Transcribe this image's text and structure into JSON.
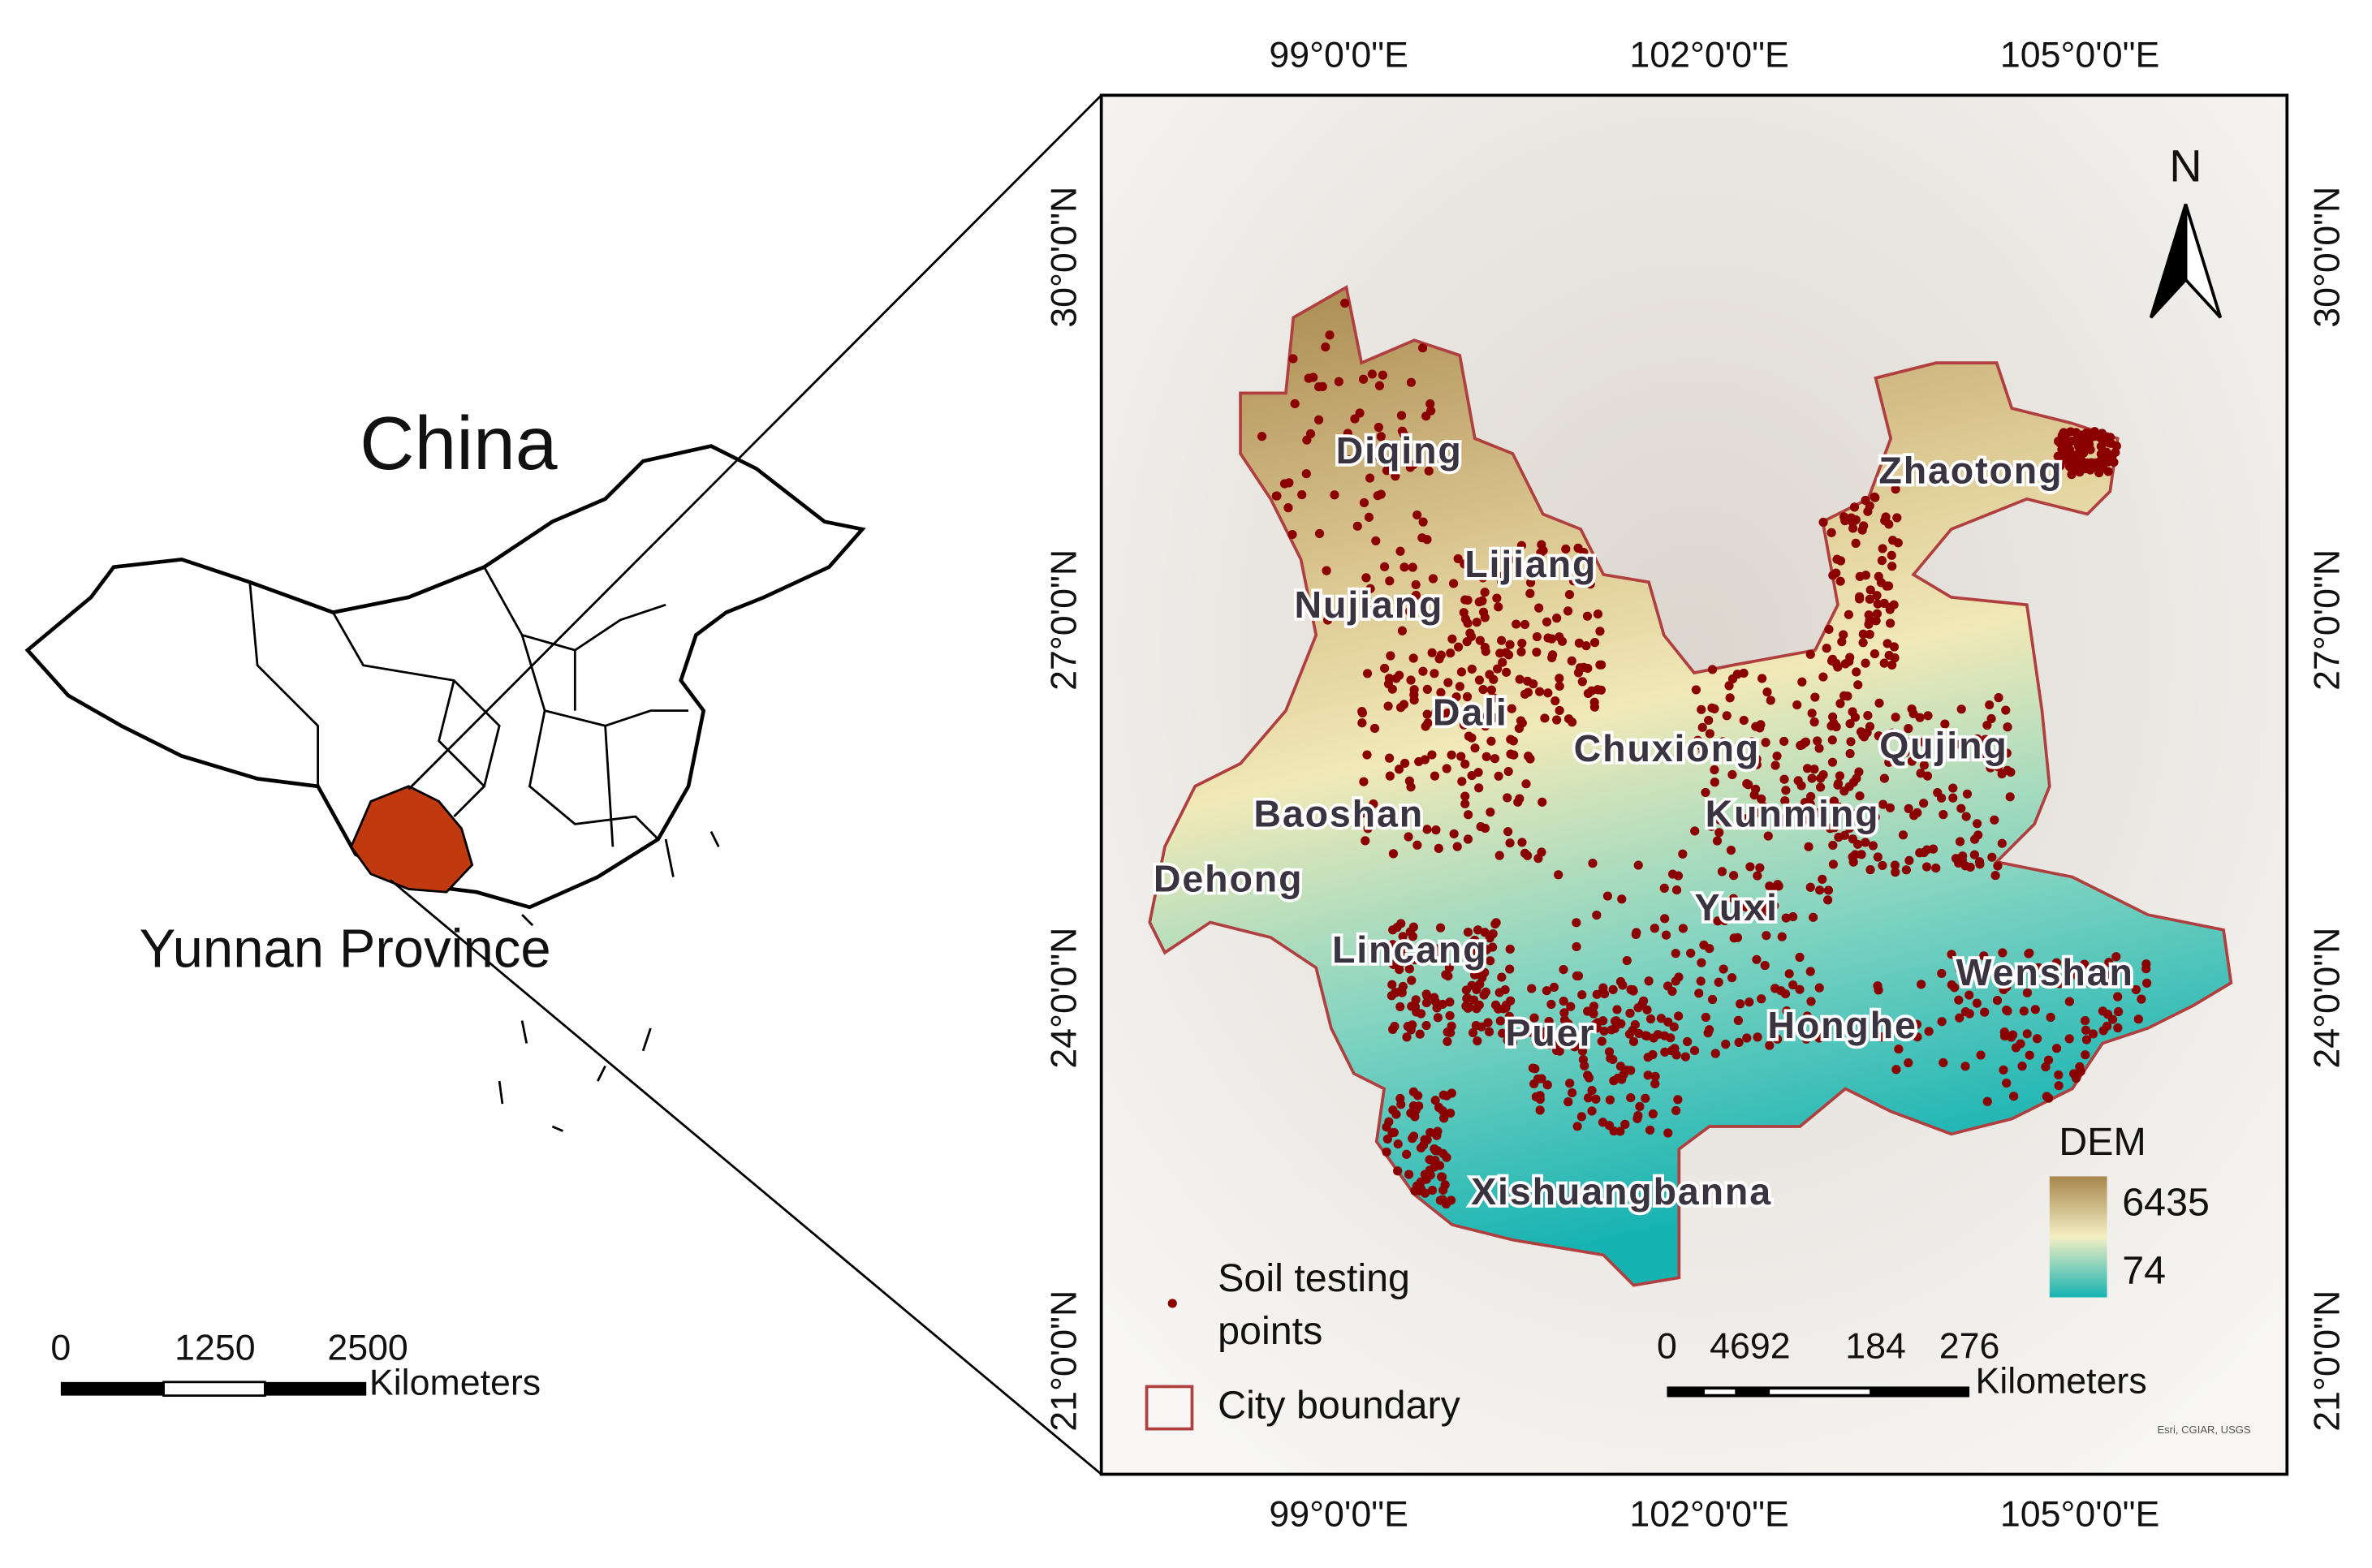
{
  "inset": {
    "country_label": "China",
    "province_label": "Yunnan Province",
    "scale_bar": {
      "ticks": [
        "0",
        "1250",
        "2500"
      ],
      "unit": "Kilometers"
    }
  },
  "map": {
    "top_axis": [
      "99°0'0\"E",
      "102°0'0\"E",
      "105°0'0\"E"
    ],
    "bottom_axis": [
      "99°0'0\"E",
      "102°0'0\"E",
      "105°0'0\"E"
    ],
    "left_axis": [
      "30°0'0\"N",
      "27°0'0\"N",
      "24°0'0\"N",
      "21°0'0\"N"
    ],
    "right_axis": [
      "30°0'0\"N",
      "27°0'0\"N",
      "24°0'0\"N",
      "21°0'0\"N"
    ],
    "north": "N",
    "cities": [
      "Diqing",
      "Lijiang",
      "Nujiang",
      "Dali",
      "Chuxiong",
      "Qujing",
      "Zhaotong",
      "Baoshan",
      "Kunming",
      "Dehong",
      "Yuxi",
      "Lincang",
      "Wenshan",
      "Puer",
      "Honghe",
      "Xishuangbanna"
    ],
    "legend": {
      "dem_title": "DEM",
      "dem_max": "6435",
      "dem_min": "74",
      "points": [
        "Soil testing",
        "points"
      ],
      "boundary": "City boundary"
    },
    "scale_bar": {
      "ticks": [
        "0",
        "4692",
        "184",
        "276"
      ],
      "unit": "Kilometers"
    },
    "attribution": "Esri, CGIAR, USGS"
  }
}
